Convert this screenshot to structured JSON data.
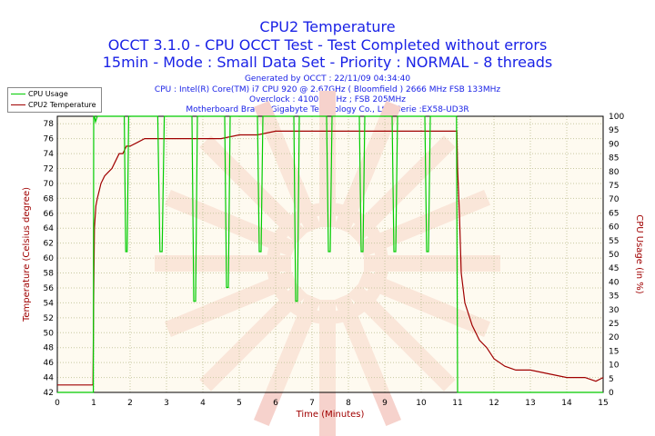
{
  "header": {
    "title": "CPU2 Temperature",
    "subtitle1": "OCCT 3.1.0 - CPU OCCT Test - Test Completed without errors",
    "subtitle2": "15min - Mode : Small Data Set - Priority : NORMAL - 8 threads",
    "info": [
      "Generated by OCCT : 22/11/09 04:34:40",
      "CPU : Intel(R) Core(TM) i7 CPU 920 @ 2.67GHz ( Bloomfield ) 2666 MHz FSB 133MHz",
      "Overclock : 4100.2 MHz ; FSB 205MHz",
      "Motherboard Brand :Gigabyte Technology Co., Ltd.,Serie :EX58-UD3R"
    ]
  },
  "legend": {
    "cpu_usage": "CPU Usage",
    "cpu2_temp": "CPU2 Temperature"
  },
  "colors": {
    "cpu_usage": "#00cc00",
    "cpu2_temp": "#a00000",
    "text": "#1a22e6",
    "plot_bg": "#fdf5e4"
  },
  "chart_data": {
    "type": "line",
    "xlabel": "Time (Minutes)",
    "ylabel": "Temperature (Celsius degree)",
    "y2label": "CPU Usage (in %)",
    "xlim": [
      0,
      15
    ],
    "ylim": [
      42,
      79
    ],
    "y2lim": [
      0,
      100
    ],
    "xticks": [
      "0",
      "1",
      "2",
      "3",
      "4",
      "5",
      "6",
      "7",
      "8",
      "9",
      "10",
      "11",
      "12",
      "13",
      "14",
      "15"
    ],
    "yticks": [
      "42",
      "44",
      "46",
      "48",
      "50",
      "52",
      "54",
      "56",
      "58",
      "60",
      "62",
      "64",
      "66",
      "68",
      "70",
      "72",
      "74",
      "76",
      "78"
    ],
    "y2ticks": [
      "0",
      "5",
      "10",
      "15",
      "20",
      "25",
      "30",
      "35",
      "40",
      "45",
      "50",
      "55",
      "60",
      "65",
      "70",
      "75",
      "80",
      "85",
      "90",
      "95",
      "100"
    ],
    "grid": true,
    "series": [
      {
        "name": "CPU2 Temperature",
        "axis": "left",
        "x": [
          0,
          0.98,
          1.0,
          1.02,
          1.06,
          1.1,
          1.15,
          1.2,
          1.3,
          1.4,
          1.5,
          1.6,
          1.7,
          1.8,
          1.9,
          2.0,
          2.2,
          2.4,
          2.6,
          2.8,
          3.0,
          3.5,
          4.0,
          4.5,
          5.0,
          5.5,
          6.0,
          6.5,
          7.0,
          7.5,
          8.0,
          8.5,
          9.0,
          9.5,
          10.0,
          10.5,
          10.98,
          11.0,
          11.05,
          11.1,
          11.2,
          11.4,
          11.6,
          11.8,
          12.0,
          12.3,
          12.6,
          13.0,
          13.5,
          14.0,
          14.5,
          14.8,
          15.0
        ],
        "values": [
          43,
          43,
          55,
          64,
          67,
          68,
          69,
          70,
          71,
          71.5,
          72,
          73,
          74,
          74,
          75,
          75,
          75.5,
          76,
          76,
          76,
          76,
          76,
          76,
          76,
          76.5,
          76.5,
          77,
          77,
          77,
          77,
          77,
          77,
          77,
          77,
          77,
          77,
          77,
          72,
          66,
          58,
          54,
          51,
          49,
          48,
          46.5,
          45.5,
          45,
          45,
          44.5,
          44,
          44,
          43.5,
          44
        ]
      },
      {
        "name": "CPU Usage",
        "axis": "right",
        "x": [
          0,
          0.99,
          1.0,
          1.02,
          1.05,
          1.1,
          1.84,
          1.88,
          1.92,
          1.96,
          2.0,
          2.76,
          2.82,
          2.88,
          2.94,
          3.0,
          3.7,
          3.75,
          3.8,
          3.85,
          3.9,
          4.6,
          4.65,
          4.7,
          4.75,
          4.8,
          5.5,
          5.55,
          5.6,
          5.65,
          5.7,
          6.5,
          6.55,
          6.6,
          6.65,
          6.7,
          7.4,
          7.45,
          7.5,
          7.55,
          7.6,
          8.3,
          8.35,
          8.4,
          8.45,
          8.5,
          9.2,
          9.25,
          9.3,
          9.35,
          9.4,
          10.1,
          10.15,
          10.2,
          10.25,
          10.3,
          10.97,
          11.0,
          11.03,
          15.0
        ],
        "values": [
          0,
          0,
          100,
          100,
          98,
          100,
          100,
          51,
          51,
          100,
          100,
          100,
          51,
          51,
          100,
          100,
          100,
          33,
          33,
          100,
          100,
          100,
          38,
          38,
          100,
          100,
          100,
          51,
          51,
          100,
          100,
          100,
          33,
          33,
          100,
          100,
          100,
          51,
          51,
          100,
          100,
          100,
          51,
          51,
          100,
          100,
          100,
          51,
          51,
          100,
          100,
          100,
          51,
          51,
          100,
          100,
          100,
          0,
          0,
          0
        ]
      }
    ]
  }
}
